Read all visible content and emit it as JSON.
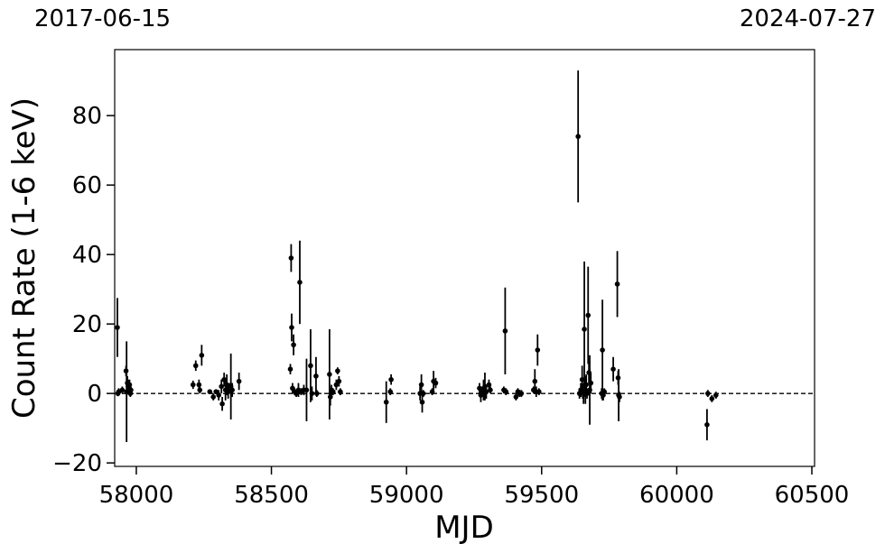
{
  "chart_data": {
    "type": "scatter",
    "title": "",
    "xlabel": "MJD",
    "ylabel": "Count Rate (1-6 keV)",
    "top_dates": [
      "2017-06-15",
      "2024-07-27"
    ],
    "xlim": [
      57920,
      60510
    ],
    "ylim": [
      -21,
      99
    ],
    "xticks": [
      58000,
      58500,
      59000,
      59500,
      60000,
      60500
    ],
    "xtick_labels": [
      "58000",
      "58500",
      "59000",
      "59500",
      "60000",
      "60500"
    ],
    "yticks": [
      -20,
      0,
      20,
      40,
      60,
      80
    ],
    "ytick_labels": [
      "−20",
      "0",
      "20",
      "40",
      "60",
      "80"
    ],
    "reference_line": {
      "y": 0,
      "style": "dashed"
    },
    "grid": false,
    "legend": "none",
    "marker_color": "#000000",
    "points": [
      {
        "x": 57930,
        "y": 19,
        "err": 8.5
      },
      {
        "x": 57932,
        "y": 0,
        "err": 0.8
      },
      {
        "x": 57935,
        "y": 0.5,
        "err": 1
      },
      {
        "x": 57948,
        "y": 1,
        "err": 1
      },
      {
        "x": 57962,
        "y": 6.5,
        "err": 1.5
      },
      {
        "x": 57964,
        "y": 0.5,
        "err": 14.5
      },
      {
        "x": 57967,
        "y": 3,
        "err": 2
      },
      {
        "x": 57970,
        "y": 2,
        "err": 2
      },
      {
        "x": 57972,
        "y": 1,
        "err": 1.5
      },
      {
        "x": 57975,
        "y": 2.5,
        "err": 1.5
      },
      {
        "x": 57978,
        "y": 0,
        "err": 1
      },
      {
        "x": 57980,
        "y": 1,
        "err": 1
      },
      {
        "x": 58210,
        "y": 2.5,
        "err": 1.2
      },
      {
        "x": 58220,
        "y": 8,
        "err": 1.5
      },
      {
        "x": 58232,
        "y": 2.5,
        "err": 1.5
      },
      {
        "x": 58235,
        "y": 1,
        "err": 1
      },
      {
        "x": 58242,
        "y": 11,
        "err": 3
      },
      {
        "x": 58272,
        "y": 0.5,
        "err": 0.5
      },
      {
        "x": 58285,
        "y": -1,
        "err": 1
      },
      {
        "x": 58295,
        "y": 0.5,
        "err": 0.5
      },
      {
        "x": 58305,
        "y": -0.5,
        "err": 1.5
      },
      {
        "x": 58315,
        "y": 2,
        "err": 2
      },
      {
        "x": 58318,
        "y": -3,
        "err": 2
      },
      {
        "x": 58325,
        "y": 4,
        "err": 2
      },
      {
        "x": 58330,
        "y": 1,
        "err": 3
      },
      {
        "x": 58335,
        "y": 2.5,
        "err": 3
      },
      {
        "x": 58340,
        "y": 0.5,
        "err": 2
      },
      {
        "x": 58345,
        "y": 1.5,
        "err": 1.5
      },
      {
        "x": 58350,
        "y": 2,
        "err": 9.5
      },
      {
        "x": 58355,
        "y": 1,
        "err": 2
      },
      {
        "x": 58380,
        "y": 3.5,
        "err": 2.5
      },
      {
        "x": 58570,
        "y": 7,
        "err": 1.5
      },
      {
        "x": 58573,
        "y": 39,
        "err": 4
      },
      {
        "x": 58575,
        "y": 19,
        "err": 4
      },
      {
        "x": 58578,
        "y": 1.5,
        "err": 1.5
      },
      {
        "x": 58582,
        "y": 14,
        "err": 3
      },
      {
        "x": 58586,
        "y": 0.5,
        "err": 1
      },
      {
        "x": 58592,
        "y": 0,
        "err": 1
      },
      {
        "x": 58600,
        "y": 1,
        "err": 2
      },
      {
        "x": 58605,
        "y": 32,
        "err": 12
      },
      {
        "x": 58610,
        "y": 0.5,
        "err": 1
      },
      {
        "x": 58620,
        "y": 1,
        "err": 1.5
      },
      {
        "x": 58630,
        "y": 1,
        "err": 9
      },
      {
        "x": 58645,
        "y": 8,
        "err": 10.5
      },
      {
        "x": 58650,
        "y": 0,
        "err": 2
      },
      {
        "x": 58665,
        "y": 5,
        "err": 5.5
      },
      {
        "x": 58668,
        "y": 0,
        "err": 1
      },
      {
        "x": 58715,
        "y": 5.5,
        "err": 13
      },
      {
        "x": 58718,
        "y": -1,
        "err": 2.5
      },
      {
        "x": 58722,
        "y": 1,
        "err": 1.5
      },
      {
        "x": 58728,
        "y": 0.5,
        "err": 1
      },
      {
        "x": 58740,
        "y": 2.5,
        "err": 1.5
      },
      {
        "x": 58745,
        "y": 6.5,
        "err": 1
      },
      {
        "x": 58750,
        "y": 3.5,
        "err": 1.5
      },
      {
        "x": 58755,
        "y": 0.5,
        "err": 1
      },
      {
        "x": 58925,
        "y": -2.5,
        "err": 6
      },
      {
        "x": 58940,
        "y": 0.5,
        "err": 1
      },
      {
        "x": 58943,
        "y": 4,
        "err": 1.5
      },
      {
        "x": 59050,
        "y": 0,
        "err": 2
      },
      {
        "x": 59055,
        "y": 2.5,
        "err": 3
      },
      {
        "x": 59058,
        "y": -2.5,
        "err": 3
      },
      {
        "x": 59062,
        "y": 0,
        "err": 1
      },
      {
        "x": 59095,
        "y": 0.5,
        "err": 1
      },
      {
        "x": 59100,
        "y": 3.5,
        "err": 3
      },
      {
        "x": 59108,
        "y": 3,
        "err": 1.5
      },
      {
        "x": 59270,
        "y": 1.5,
        "err": 1.5
      },
      {
        "x": 59275,
        "y": -0.5,
        "err": 2
      },
      {
        "x": 59280,
        "y": 0.5,
        "err": 1.5
      },
      {
        "x": 59285,
        "y": 1,
        "err": 3
      },
      {
        "x": 59290,
        "y": 2,
        "err": 4
      },
      {
        "x": 59295,
        "y": 0.5,
        "err": 2
      },
      {
        "x": 59305,
        "y": 2.5,
        "err": 1.5
      },
      {
        "x": 59310,
        "y": 1,
        "err": 1
      },
      {
        "x": 59360,
        "y": 1,
        "err": 1
      },
      {
        "x": 59365,
        "y": 18,
        "err": 12.5
      },
      {
        "x": 59368,
        "y": 0.5,
        "err": 1
      },
      {
        "x": 59405,
        "y": -1,
        "err": 1
      },
      {
        "x": 59412,
        "y": 0.5,
        "err": 1
      },
      {
        "x": 59418,
        "y": 0,
        "err": 1
      },
      {
        "x": 59425,
        "y": 0,
        "err": 1
      },
      {
        "x": 59470,
        "y": 1,
        "err": 1
      },
      {
        "x": 59475,
        "y": 3.5,
        "err": 3.5
      },
      {
        "x": 59480,
        "y": 0.5,
        "err": 1.5
      },
      {
        "x": 59485,
        "y": 12.5,
        "err": 4.5
      },
      {
        "x": 59490,
        "y": 0.5,
        "err": 1
      },
      {
        "x": 59635,
        "y": 74,
        "err": 19
      },
      {
        "x": 59640,
        "y": 0,
        "err": 1.5
      },
      {
        "x": 59645,
        "y": 1,
        "err": 2
      },
      {
        "x": 59650,
        "y": 4,
        "err": 4
      },
      {
        "x": 59652,
        "y": 0.5,
        "err": 2
      },
      {
        "x": 59655,
        "y": 0,
        "err": 3
      },
      {
        "x": 59658,
        "y": 18.5,
        "err": 19.5
      },
      {
        "x": 59662,
        "y": 1,
        "err": 4
      },
      {
        "x": 59665,
        "y": 2.5,
        "err": 3
      },
      {
        "x": 59668,
        "y": 0,
        "err": 1.5
      },
      {
        "x": 59672,
        "y": 22.5,
        "err": 14
      },
      {
        "x": 59675,
        "y": 6,
        "err": 3
      },
      {
        "x": 59678,
        "y": 1,
        "err": 10
      },
      {
        "x": 59682,
        "y": 3,
        "err": 3
      },
      {
        "x": 59722,
        "y": 0,
        "err": 1.5
      },
      {
        "x": 59725,
        "y": 12.5,
        "err": 14.5
      },
      {
        "x": 59728,
        "y": -0.5,
        "err": 1.5
      },
      {
        "x": 59732,
        "y": 0.5,
        "err": 1
      },
      {
        "x": 59765,
        "y": 7,
        "err": 3.5
      },
      {
        "x": 59780,
        "y": 31.5,
        "err": 9.5
      },
      {
        "x": 59783,
        "y": 4.5,
        "err": 2
      },
      {
        "x": 59785,
        "y": -0.5,
        "err": 7.5
      },
      {
        "x": 59788,
        "y": -1,
        "err": 1.5
      },
      {
        "x": 60112,
        "y": -9,
        "err": 4.5
      },
      {
        "x": 60115,
        "y": 0,
        "err": 1
      },
      {
        "x": 60130,
        "y": -1.5,
        "err": 1
      },
      {
        "x": 60145,
        "y": -0.5,
        "err": 1
      }
    ]
  }
}
